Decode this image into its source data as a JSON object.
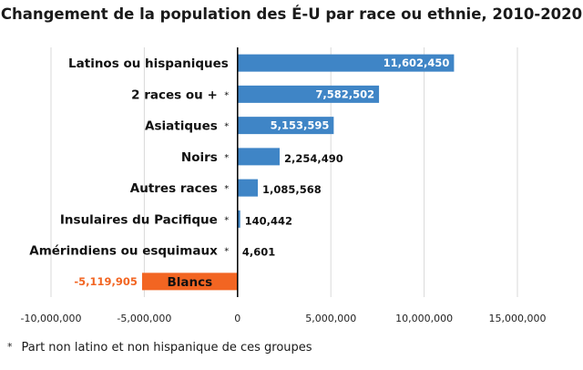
{
  "chart_data": {
    "type": "bar",
    "orientation": "horizontal",
    "title": "Changement de la population des É-U par race ou ethnie, 2010-2020",
    "categories": [
      "Latinos ou hispaniques",
      "2 races ou +",
      "Asiatiques",
      "Noirs",
      "Autres races",
      "Insulaires du Pacifique",
      "Amérindiens ou esquimaux",
      "Blancs"
    ],
    "values": [
      11602450,
      7582502,
      5153595,
      2254490,
      1085568,
      140442,
      4601,
      -5119905
    ],
    "value_labels": [
      "11,602,450",
      "7,582,502",
      "5,153,595",
      "2,254,490",
      "1,085,568",
      "140,442",
      "4,601",
      "-5,119,905"
    ],
    "starred": [
      false,
      true,
      true,
      true,
      true,
      true,
      true,
      false
    ],
    "star_symbol": "*",
    "xlim": [
      -10000000,
      15000000
    ],
    "xticks": [
      -10000000,
      -5000000,
      0,
      5000000,
      10000000,
      15000000
    ],
    "xtick_labels": [
      "-10,000,000",
      "-5,000,000",
      "0",
      "5,000,000",
      "10,000,000",
      "15,000,000"
    ],
    "grid": true,
    "colors": {
      "positive": "#3f85c6",
      "negative": "#f26522",
      "negative_label": "#f26522"
    }
  },
  "footnote": {
    "symbol": "*",
    "text": "Part non latino et non hispanique de ces groupes"
  }
}
